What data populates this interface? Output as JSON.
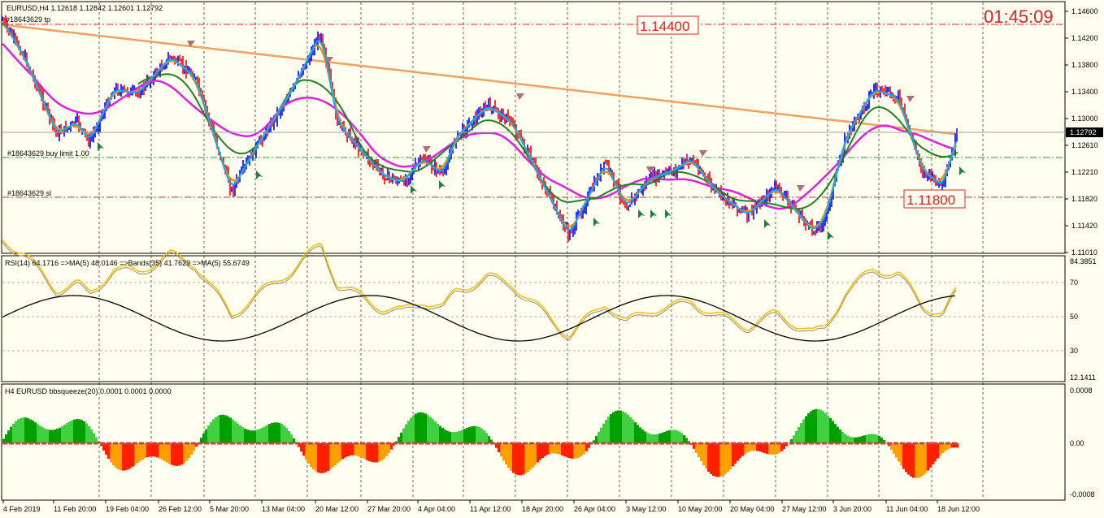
{
  "header": {
    "symbol_line": "EURUSD,H4  1.12618 1.12842 1.12601 1.12792",
    "clock": "01:45:09"
  },
  "main": {
    "order_tp_label": "#18643629 tp",
    "order_buy_label": "#18643629 buy limit 1.00",
    "order_sl_label": "#18643629 sl",
    "level_high": "1.14400",
    "level_low": "1.11800",
    "current_price": "1.12792",
    "price_ticks": [
      "1.14600",
      "1.14200",
      "1.13800",
      "1.13400",
      "1.13000",
      "1.12610",
      "1.12210",
      "1.11820",
      "1.11420",
      "1.11010"
    ]
  },
  "rsi": {
    "label": "RSI(14) 64.1716  =>MA(5) 48.0146  =>Bands(35) 41.7629  =>MA(5) 55.6749",
    "ticks": [
      "84.3851",
      "70",
      "50",
      "30",
      "12.1411"
    ]
  },
  "squeeze": {
    "label": "H4 EURUSD bbsqueeze(20) 0.0001 0.0001 0.0000",
    "ticks": [
      "0.0008",
      "0.00",
      "-0.0008"
    ]
  },
  "time_axis": [
    "4 Feb 2019",
    "11 Feb 20:00",
    "19 Feb 04:00",
    "26 Feb 12:00",
    "5 Mar 20:00",
    "13 Mar 04:00",
    "20 Mar 12:00",
    "27 Mar 20:00",
    "4 Apr 04:00",
    "11 Apr 12:00",
    "18 Apr 20:00",
    "26 Apr 04:00",
    "3 May 12:00",
    "10 May 20:00",
    "20 May 04:00",
    "27 May 12:00",
    "3 Jun 20:00",
    "11 Jun 04:00",
    "18 Jun 12:00"
  ],
  "colors": {
    "background": "#fffff0",
    "bull": "#0000ff",
    "bear": "#ff0000",
    "ma_fast": "#00b0ff",
    "ma_orange": "#ff8c00",
    "ma_magenta": "#e020e0",
    "ma_green": "#208020",
    "ma_slow": "#f0a060",
    "level": "#e02020"
  }
}
